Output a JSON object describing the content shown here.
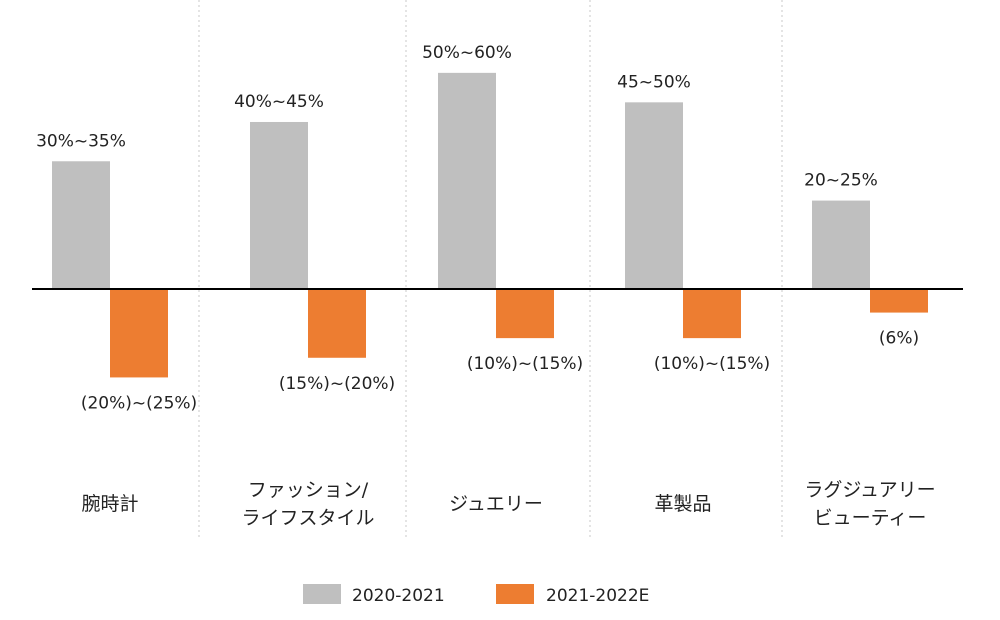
{
  "chart_data": {
    "type": "bar",
    "categories": [
      "腕時計",
      "ファッション/\nライフスタイル",
      "ジュエリー",
      "革製品",
      "ラグジュアリー\nビューティー"
    ],
    "series": [
      {
        "name": "2020-2021",
        "values": [
          32.5,
          42.5,
          55,
          47.5,
          22.5
        ],
        "labels": [
          "30%~35%",
          "40%~45%",
          "50%~60%",
          "45~50%",
          "20~25%"
        ]
      },
      {
        "name": "2021-2022E",
        "values": [
          -22.5,
          -17.5,
          -12.5,
          -12.5,
          -6
        ],
        "labels": [
          "(20%)~(25%)",
          "(15%)~(20%)",
          "(10%)~(15%)",
          "(10%)~(15%)",
          "(6%)"
        ]
      }
    ],
    "unit": "%",
    "ylim": [
      -30,
      60
    ],
    "grid": false,
    "legend": "bottom",
    "colors": [
      "#bfbfbf",
      "#ed7d31"
    ]
  }
}
